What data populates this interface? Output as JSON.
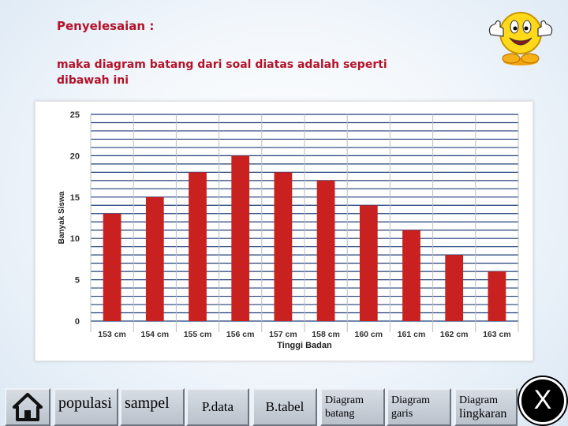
{
  "header": {
    "title": "Penyelesaian :",
    "description": "maka diagram batang dari soal diatas adalah seperti dibawah ini"
  },
  "mascot": {
    "icon": "smiley-thumbs-up-icon"
  },
  "chart_data": {
    "type": "bar",
    "categories": [
      "153 cm",
      "154 cm",
      "155 cm",
      "156 cm",
      "157 cm",
      "158 cm",
      "160 cm",
      "161 cm",
      "162 cm",
      "163 cm"
    ],
    "values": [
      13,
      15,
      18,
      20,
      18,
      17,
      14,
      11,
      8,
      6
    ],
    "xlabel": "Tinggi Badan",
    "ylabel": "Banyak Siswa",
    "ylim": [
      0,
      25
    ],
    "yticks": [
      0,
      5,
      10,
      15,
      20,
      25
    ],
    "grid": true,
    "bar_color": "#c8211f",
    "grid_color": "#1f3f7a"
  },
  "nav": {
    "home_icon": "home-icon",
    "populasi": "populasi",
    "sampel": "sampel",
    "pdata": "P.data",
    "btabel": "B.tabel",
    "diagram_batang_1": "Diagram",
    "diagram_batang_2": "batang",
    "diagram_garis_1": "Diagram",
    "diagram_garis_2": "garis",
    "diagram_lingkaran_1": "Diagram",
    "diagram_lingkaran_2": "lingkaran",
    "close": "X"
  }
}
